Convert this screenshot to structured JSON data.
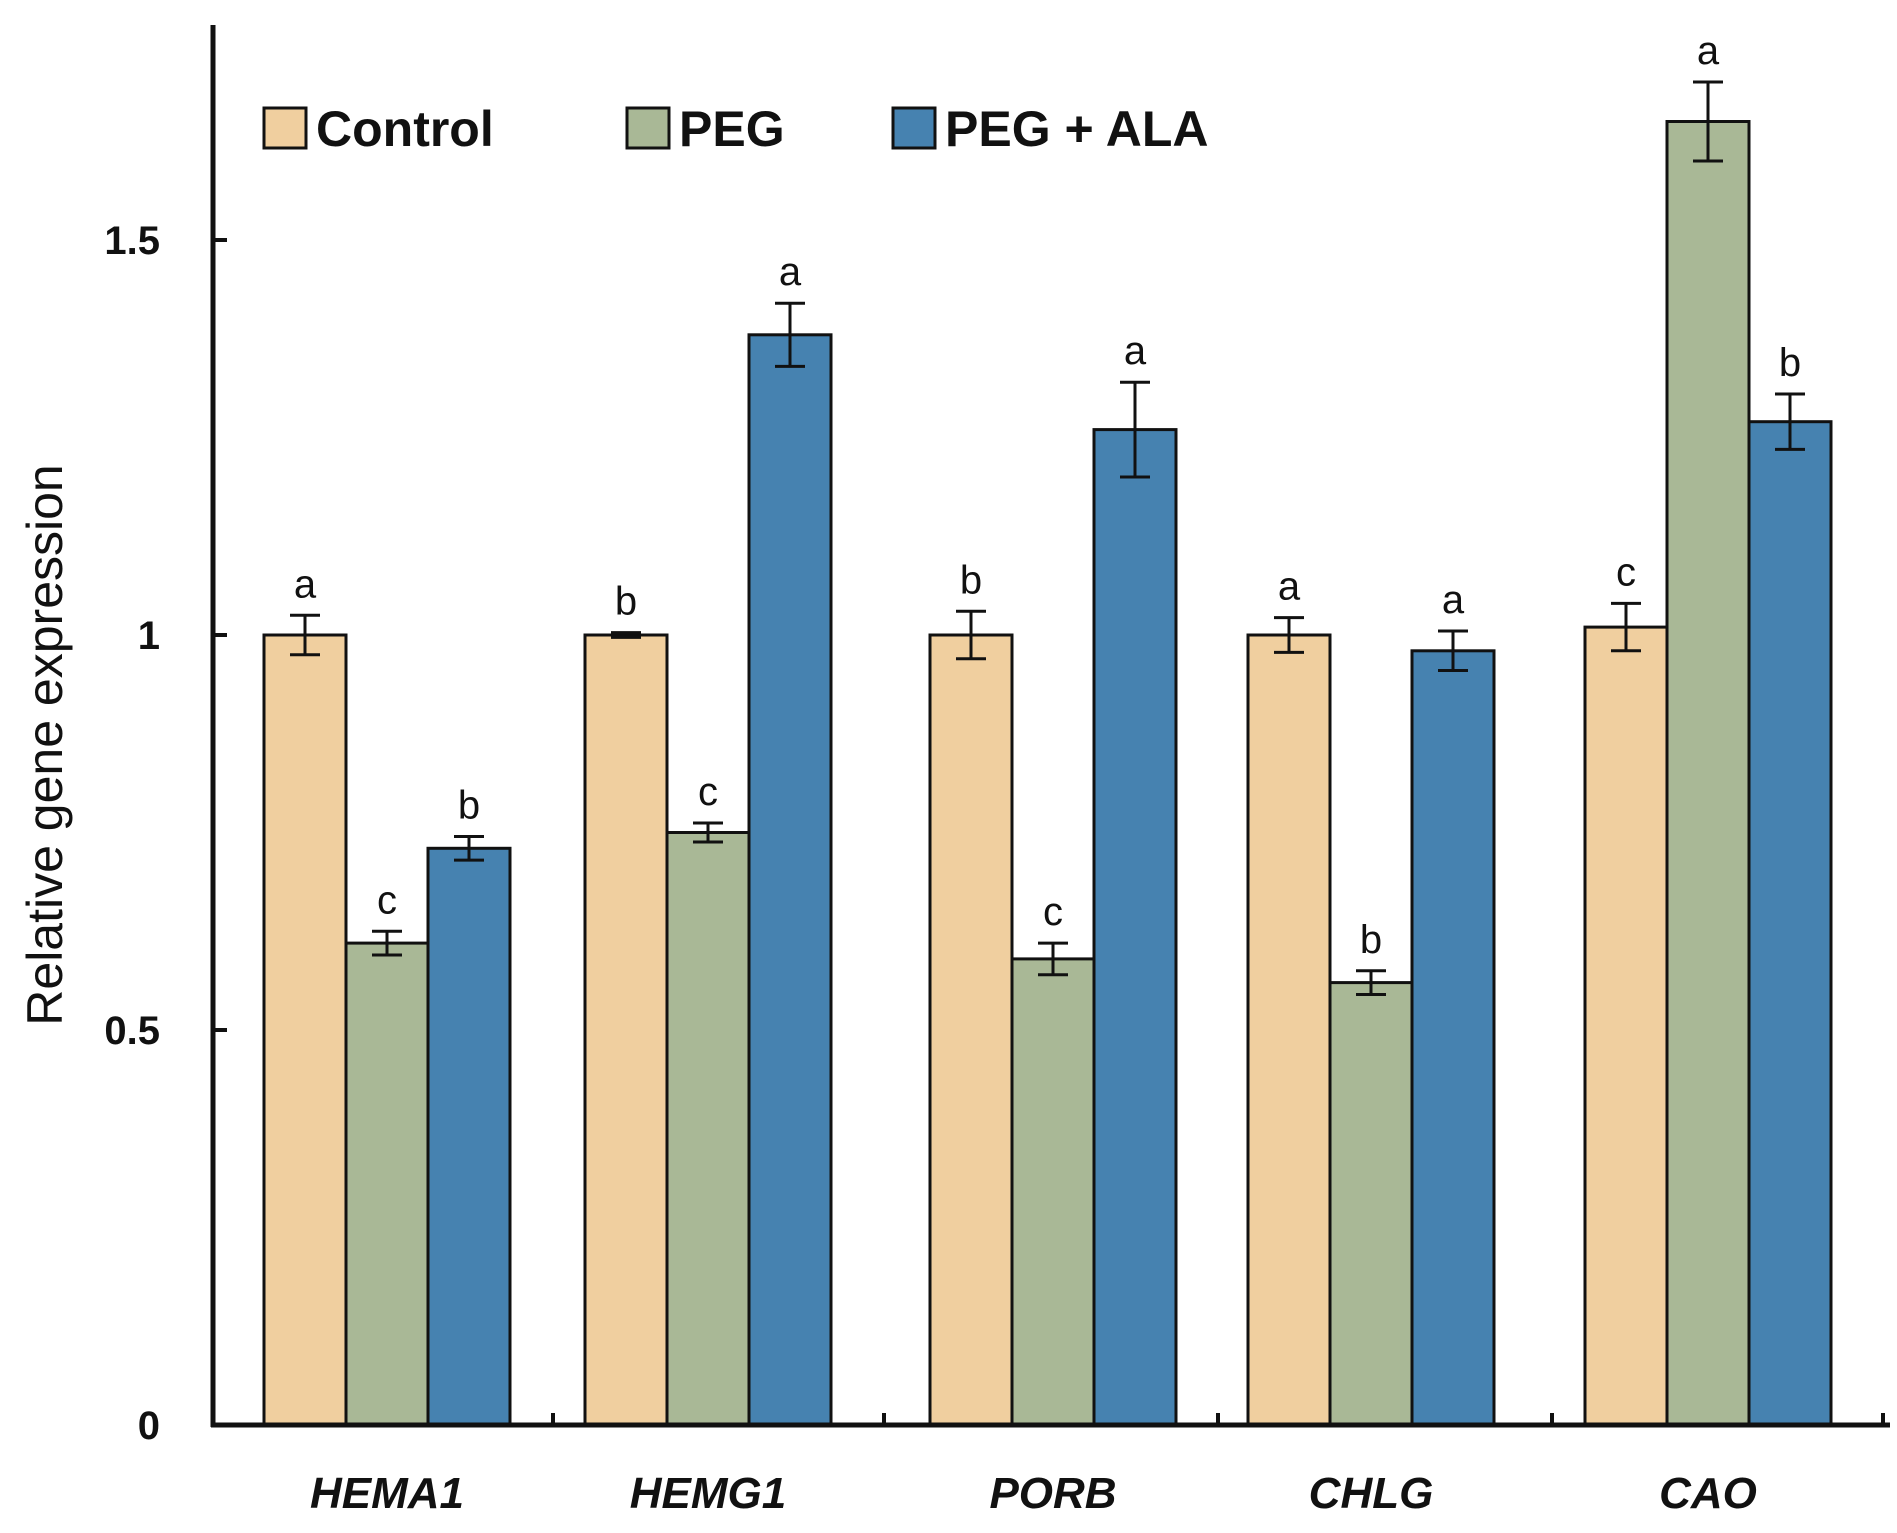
{
  "chart_data": {
    "type": "bar",
    "title": "",
    "xlabel": "",
    "ylabel": "Relative gene expression",
    "ylim": [
      0,
      1.8
    ],
    "yticks": [
      {
        "value": 0,
        "label": "0"
      },
      {
        "value": 0.5,
        "label": "0.5"
      },
      {
        "value": 1,
        "label": "1"
      },
      {
        "value": 1.5,
        "label": "1.5"
      }
    ],
    "categories": [
      "HEMA1",
      "HEMG1",
      "PORB",
      "CHLG",
      "CAO"
    ],
    "legend_position": "top-left",
    "series": [
      {
        "name": "Control",
        "color": "#f0cf9f",
        "values": [
          1.0,
          1.0,
          1.0,
          1.0,
          1.01
        ],
        "errors": [
          0.025,
          0.003,
          0.03,
          0.022,
          0.03
        ],
        "letters": [
          "a",
          "b",
          "b",
          "a",
          "c"
        ]
      },
      {
        "name": "PEG",
        "color": "#a9b896",
        "values": [
          0.61,
          0.75,
          0.59,
          0.56,
          1.65
        ],
        "errors": [
          0.015,
          0.012,
          0.02,
          0.015,
          0.05
        ],
        "letters": [
          "c",
          "c",
          "c",
          "b",
          "a"
        ]
      },
      {
        "name": "PEG + ALA",
        "color": "#4682b0",
        "values": [
          0.73,
          1.38,
          1.26,
          0.98,
          1.27
        ],
        "errors": [
          0.015,
          0.04,
          0.06,
          0.025,
          0.035
        ],
        "letters": [
          "b",
          "a",
          "a",
          "a",
          "b"
        ]
      }
    ]
  }
}
